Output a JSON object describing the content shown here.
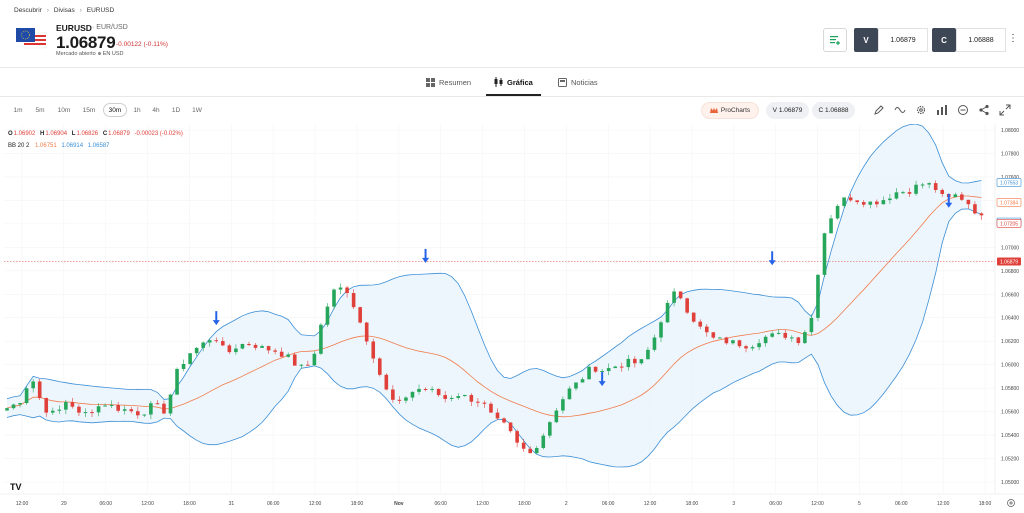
{
  "breadcrumb": [
    "Descubrir",
    "Divisas",
    "EURUSD"
  ],
  "instrument": {
    "symbol": "EURUSD",
    "description": "· EUR/USD",
    "price": "1.06879",
    "change": "-0.00122 (-0.11%)",
    "market_status": "Mercado abierto",
    "currency": "EN USD"
  },
  "trade": {
    "sell_label": "V",
    "sell_price": "1.06879",
    "buy_label": "C",
    "buy_price": "1.06888"
  },
  "tabs": [
    {
      "label": "Resumen",
      "icon": "grid-icon"
    },
    {
      "label": "Gráfica",
      "icon": "candles-icon",
      "active": true
    },
    {
      "label": "Noticias",
      "icon": "news-icon"
    }
  ],
  "timeframes": [
    "1m",
    "5m",
    "10m",
    "15m",
    "30m",
    "1h",
    "4h",
    "1D",
    "1W"
  ],
  "active_timeframe": "30m",
  "prochart": "ProCharts",
  "sell_pill": "V 1.06879",
  "buy_pill": "C 1.06888",
  "colors": {
    "up": "#26a65b",
    "down": "#e0403a",
    "band": "#3b8fd6",
    "band_fill": "#e8f3fc",
    "mid": "#f07c4a",
    "arrow": "#2563e8"
  },
  "chart_data": {
    "type": "candlestick",
    "legend_ohlc": {
      "o_label": "O",
      "o": "1.06902",
      "h_label": "H",
      "h": "1.06904",
      "l_label": "L",
      "l": "1.06826",
      "c_label": "C",
      "c": "1.06879",
      "change": "-0.00023 (-0.02%)"
    },
    "legend_bb": {
      "name": "BB 20 2",
      "mid": "1.06751",
      "upper": "1.06914",
      "lower": "1.06587"
    },
    "y_ticks": [
      "1.08000",
      "1.07800",
      "1.07600",
      "1.07400",
      "1.07200",
      "1.07000",
      "1.06800",
      "1.06600",
      "1.06400",
      "1.06200",
      "1.06000",
      "1.05800",
      "1.05600",
      "1.05400",
      "1.05200",
      "1.05000"
    ],
    "y_range": [
      1.05,
      1.08
    ],
    "x_ticks": [
      "12:00",
      "29",
      "06:00",
      "12:00",
      "18:00",
      "31",
      "06:00",
      "12:00",
      "18:00",
      "Nov",
      "06:00",
      "12:00",
      "18:00",
      "2",
      "06:00",
      "12:00",
      "18:00",
      "3",
      "06:00",
      "12:00",
      "5",
      "06:00",
      "12:00",
      "18:00"
    ],
    "current_price": "1.06879",
    "band_labels": {
      "upper": "1.07553",
      "mid": "1.07384",
      "close_upper": "1.07215",
      "lower": "1.07205"
    },
    "arrows_near_prices": [
      1.0632,
      1.0685,
      1.058,
      1.0683,
      1.0732
    ],
    "close_path": [
      1.0563,
      1.0568,
      1.059,
      1.0563,
      1.0557,
      1.0571,
      1.0556,
      1.0562,
      1.0567,
      1.0563,
      1.0561,
      1.0558,
      1.0566,
      1.056,
      1.0595,
      1.061,
      1.0617,
      1.0625,
      1.0609,
      1.0617,
      1.0618,
      1.0614,
      1.0612,
      1.0607,
      1.0597,
      1.0601,
      1.0643,
      1.0666,
      1.0663,
      1.0636,
      1.061,
      1.058,
      1.0564,
      1.0576,
      1.058,
      1.0577,
      1.0571,
      1.0575,
      1.0571,
      1.0568,
      1.0553,
      1.0547,
      1.053,
      1.0524,
      1.054,
      1.0561,
      1.0577,
      1.0586,
      1.0598,
      1.0595,
      1.0599,
      1.0602,
      1.0601,
      1.0619,
      1.0647,
      1.0664,
      1.0644,
      1.063,
      1.0622,
      1.062,
      1.0618,
      1.0616,
      1.0623,
      1.0625,
      1.0625,
      1.0621,
      1.0637,
      1.071,
      1.0735,
      1.0743,
      1.074,
      1.0738,
      1.0741,
      1.0747,
      1.0748,
      1.0754,
      1.0753,
      1.074,
      1.0745,
      1.0737,
      1.0725
    ]
  }
}
